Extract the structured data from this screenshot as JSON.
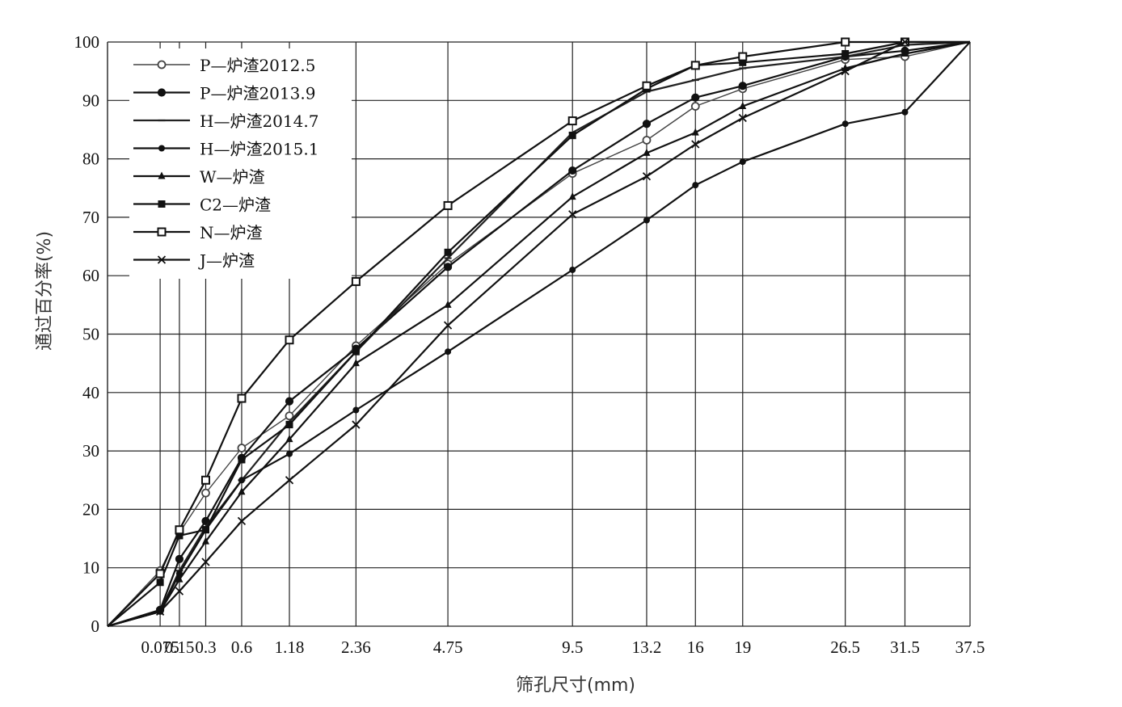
{
  "chart_data": {
    "type": "line",
    "title": "",
    "xlabel": "筛孔尺寸(mm)",
    "ylabel": "通过百分率(%)",
    "ylim": [
      0,
      100
    ],
    "y_ticks": [
      0,
      10,
      20,
      30,
      40,
      50,
      60,
      70,
      80,
      90,
      100
    ],
    "x_scale": "gradation-power-0.45",
    "grid": true,
    "legend_position": "top-left",
    "categories": [
      "0.075",
      "0.15",
      "0.3",
      "0.6",
      "1.18",
      "2.36",
      "4.75",
      "9.5",
      "13.2",
      "16",
      "19",
      "26.5",
      "31.5",
      "37.5"
    ],
    "x": [
      0,
      0.075,
      0.15,
      0.3,
      0.6,
      1.18,
      2.36,
      4.75,
      9.5,
      13.2,
      16,
      19,
      26.5,
      31.5,
      37.5
    ],
    "series": [
      {
        "name": "P—炉渣2012.5",
        "marker": "open-circle",
        "color": "#444444",
        "values": [
          0,
          9.5,
          16.0,
          22.8,
          30.5,
          36.0,
          48.0,
          62.0,
          77.5,
          83.2,
          89.0,
          92.0,
          97.0,
          97.5,
          100
        ]
      },
      {
        "name": "P—炉渣2013.9",
        "marker": "circle",
        "color": "#111111",
        "values": [
          0,
          2.8,
          11.5,
          18.0,
          28.8,
          38.5,
          47.5,
          61.5,
          78.0,
          86.0,
          90.5,
          92.5,
          97.5,
          98.5,
          100
        ]
      },
      {
        "name": "H—炉渣2014.7",
        "marker": "dash",
        "color": "#222222",
        "values": [
          0,
          2.5,
          9.5,
          17.0,
          25.0,
          35.0,
          47.0,
          63.0,
          84.5,
          91.5,
          93.5,
          95.5,
          97.5,
          99.5,
          100
        ]
      },
      {
        "name": "H—炉渣2015.1",
        "marker": "dot",
        "color": "#111111",
        "values": [
          0,
          2.5,
          9.0,
          16.5,
          25.0,
          29.5,
          37.0,
          47.0,
          61.0,
          69.5,
          75.5,
          79.5,
          86.0,
          88.0,
          100
        ]
      },
      {
        "name": "W—炉渣",
        "marker": "triangle",
        "color": "#111111",
        "values": [
          0,
          2.5,
          8.0,
          14.5,
          23.0,
          32.0,
          45.0,
          55.0,
          73.5,
          81.0,
          84.5,
          89.0,
          95.5,
          98.0,
          100
        ]
      },
      {
        "name": "C2—炉渣",
        "marker": "square",
        "color": "#111111",
        "values": [
          0,
          7.5,
          15.5,
          16.5,
          28.5,
          34.5,
          47.0,
          64.0,
          84.0,
          92.0,
          96.0,
          96.5,
          98.0,
          100,
          100
        ]
      },
      {
        "name": "N—炉渣",
        "marker": "open-square",
        "color": "#111111",
        "values": [
          0,
          9.0,
          16.5,
          25.0,
          39.0,
          49.0,
          59.0,
          72.0,
          86.5,
          92.5,
          96.0,
          97.5,
          100,
          100,
          100
        ]
      },
      {
        "name": "J—炉渣",
        "marker": "x",
        "color": "#111111",
        "values": [
          0,
          2.5,
          6.0,
          11.0,
          18.0,
          25.0,
          34.5,
          51.5,
          70.5,
          77.0,
          82.5,
          87.0,
          95.0,
          100,
          100
        ]
      }
    ]
  }
}
